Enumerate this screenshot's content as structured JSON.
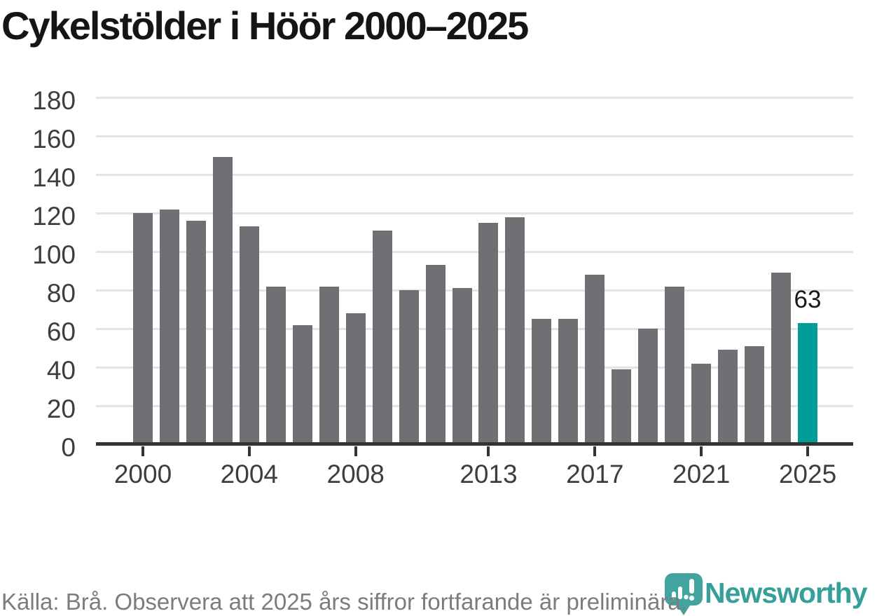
{
  "title": "Cykelstölder i Höör 2000–2025",
  "chart_data": {
    "type": "bar",
    "categories": [
      2000,
      2001,
      2002,
      2003,
      2004,
      2005,
      2006,
      2007,
      2008,
      2009,
      2010,
      2011,
      2012,
      2013,
      2014,
      2015,
      2016,
      2017,
      2018,
      2019,
      2020,
      2021,
      2022,
      2023,
      2024,
      2025
    ],
    "values": [
      120,
      122,
      116,
      149,
      113,
      82,
      62,
      82,
      68,
      111,
      80,
      93,
      81,
      115,
      118,
      65,
      65,
      88,
      39,
      60,
      82,
      42,
      49,
      51,
      89,
      63
    ],
    "title": "Cykelstölder i Höör 2000–2025",
    "xlabel": "",
    "ylabel": "",
    "ylim": [
      0,
      180
    ],
    "y_ticks": [
      0,
      20,
      40,
      60,
      80,
      100,
      120,
      140,
      160,
      180
    ],
    "x_tick_labels": [
      "2000",
      "2004",
      "2008",
      "2013",
      "2017",
      "2021",
      "2025"
    ],
    "x_tick_indices": [
      0,
      4,
      8,
      13,
      17,
      21,
      25
    ],
    "grid": "horizontal",
    "legend": "none",
    "highlight_index": 25,
    "highlight_value_label": "63",
    "colors": {
      "bar": "#716f74",
      "highlight_bar": "#009e96",
      "gridline": "#e4e4e4",
      "axis": "#333333",
      "tick_label": "#3d3d3d",
      "value_label": "#1a1a1a"
    }
  },
  "footer": {
    "source_note": "Källa: Brå. Observera att 2025 års siffror fortfarande är preliminära."
  },
  "branding": {
    "logo_text": "Newsworthy",
    "logo_icon": "newsworthy-bubble-chart-icon",
    "logo_color": "#42a49e"
  }
}
